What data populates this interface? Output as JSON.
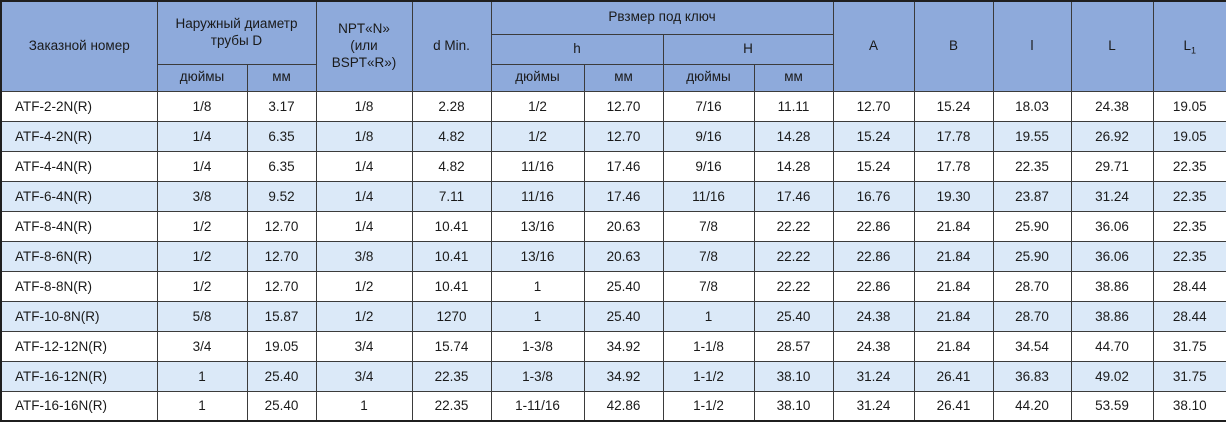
{
  "colors": {
    "header_bg": "#8EAADB",
    "alt_row_bg": "#DBE9F8",
    "border": "#3B3B3B",
    "outer_border": "#1F1F1F",
    "text": "#1A1A1A"
  },
  "table": {
    "header": {
      "order_number": "Заказной номер",
      "outer_diameter": "Наружный диаметр трубы D",
      "npt": "NPT«N»\n(или\nBSPT«R»)",
      "d_min": "d Min.",
      "wrench_size": "Рвзмер под ключ",
      "h": "h",
      "H": "H",
      "inches": "дюймы",
      "mm": "мм",
      "A": "A",
      "B": "B",
      "l": "l",
      "L": "L",
      "L1_base": "L",
      "L1_sub": "1"
    },
    "rows": [
      [
        "ATF-2-2N(R)",
        "1/8",
        "3.17",
        "1/8",
        "2.28",
        "1/2",
        "12.70",
        "7/16",
        "11.11",
        "12.70",
        "15.24",
        "18.03",
        "24.38",
        "19.05"
      ],
      [
        "ATF-4-2N(R)",
        "1/4",
        "6.35",
        "1/8",
        "4.82",
        "1/2",
        "12.70",
        "9/16",
        "14.28",
        "15.24",
        "17.78",
        "19.55",
        "26.92",
        "19.05"
      ],
      [
        "ATF-4-4N(R)",
        "1/4",
        "6.35",
        "1/4",
        "4.82",
        "11/16",
        "17.46",
        "9/16",
        "14.28",
        "15.24",
        "17.78",
        "22.35",
        "29.71",
        "22.35"
      ],
      [
        "ATF-6-4N(R)",
        "3/8",
        "9.52",
        "1/4",
        "7.11",
        "11/16",
        "17.46",
        "11/16",
        "17.46",
        "16.76",
        "19.30",
        "23.87",
        "31.24",
        "22.35"
      ],
      [
        "ATF-8-4N(R)",
        "1/2",
        "12.70",
        "1/4",
        "10.41",
        "13/16",
        "20.63",
        "7/8",
        "22.22",
        "22.86",
        "21.84",
        "25.90",
        "36.06",
        "22.35"
      ],
      [
        "ATF-8-6N(R)",
        "1/2",
        "12.70",
        "3/8",
        "10.41",
        "13/16",
        "20.63",
        "7/8",
        "22.22",
        "22.86",
        "21.84",
        "25.90",
        "36.06",
        "22.35"
      ],
      [
        "ATF-8-8N(R)",
        "1/2",
        "12.70",
        "1/2",
        "10.41",
        "1",
        "25.40",
        "7/8",
        "22.22",
        "22.86",
        "21.84",
        "28.70",
        "38.86",
        "28.44"
      ],
      [
        "ATF-10-8N(R)",
        "5/8",
        "15.87",
        "1/2",
        "1270",
        "1",
        "25.40",
        "1",
        "25.40",
        "24.38",
        "21.84",
        "28.70",
        "38.86",
        "28.44"
      ],
      [
        "ATF-12-12N(R)",
        "3/4",
        "19.05",
        "3/4",
        "15.74",
        "1-3/8",
        "34.92",
        "1-1/8",
        "28.57",
        "24.38",
        "21.84",
        "34.54",
        "44.70",
        "31.75"
      ],
      [
        "ATF-16-12N(R)",
        "1",
        "25.40",
        "3/4",
        "22.35",
        "1-3/8",
        "34.92",
        "1-1/2",
        "38.10",
        "31.24",
        "26.41",
        "36.83",
        "49.02",
        "31.75"
      ],
      [
        "ATF-16-16N(R)",
        "1",
        "25.40",
        "1",
        "22.35",
        "1-11/16",
        "42.86",
        "1-1/2",
        "38.10",
        "31.24",
        "26.41",
        "44.20",
        "53.59",
        "38.10"
      ]
    ]
  }
}
